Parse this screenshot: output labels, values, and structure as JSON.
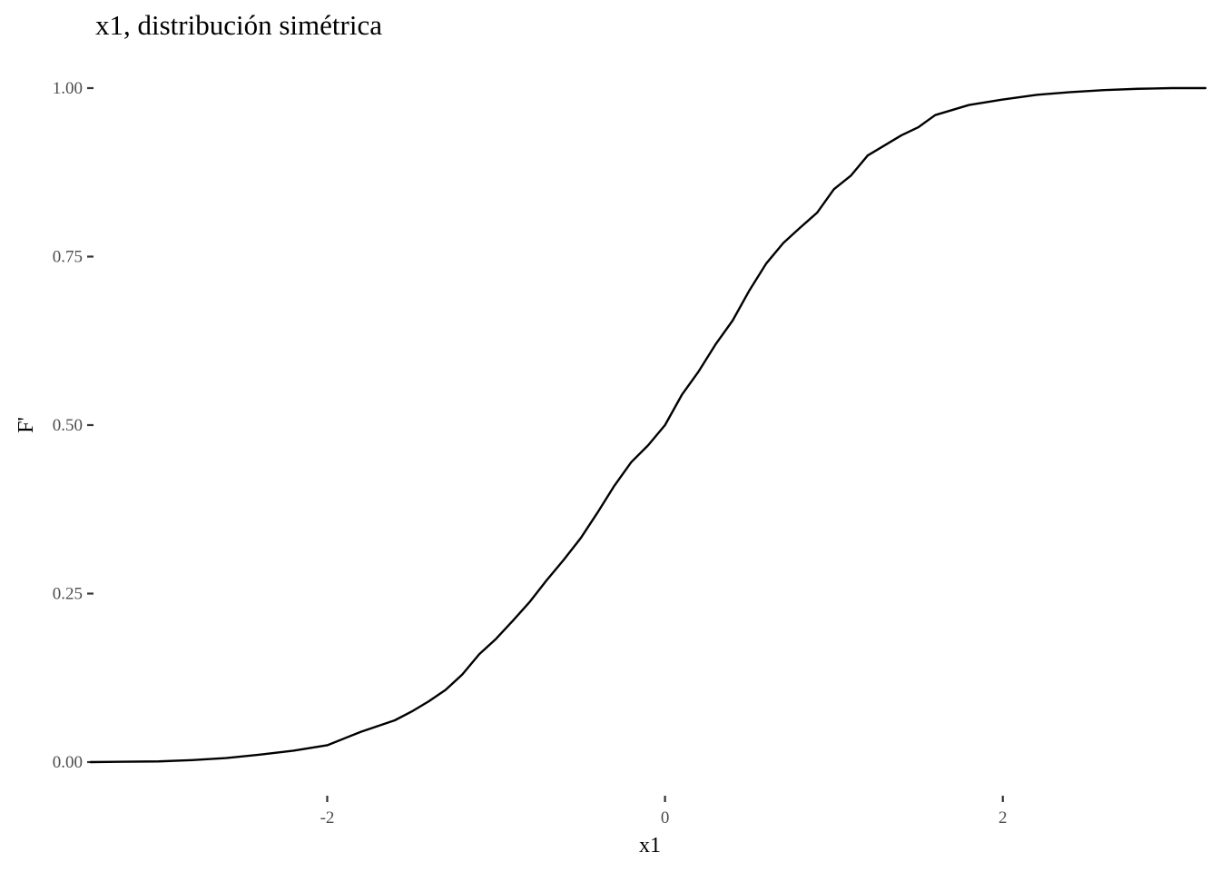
{
  "chart_data": {
    "type": "line",
    "title": "x1, distribución simétrica",
    "xlabel": "x1",
    "ylabel": "F'",
    "xlim": [
      -3.4,
      3.2
    ],
    "ylim": [
      0,
      1
    ],
    "grid": false,
    "x_ticks": [
      {
        "value": -2,
        "label": "-2"
      },
      {
        "value": 0,
        "label": "0"
      },
      {
        "value": 2,
        "label": "2"
      }
    ],
    "y_ticks": [
      {
        "value": 0,
        "label": "0.00"
      },
      {
        "value": 0.25,
        "label": "0.25"
      },
      {
        "value": 0.5,
        "label": "0.50"
      },
      {
        "value": 0.75,
        "label": "0.75"
      },
      {
        "value": 1,
        "label": "1.00"
      }
    ],
    "series": [
      {
        "color": "#000000",
        "x": [
          -3.4,
          -3.0,
          -2.8,
          -2.6,
          -2.4,
          -2.2,
          -2.0,
          -1.8,
          -1.6,
          -1.5,
          -1.4,
          -1.3,
          -1.2,
          -1.1,
          -1.0,
          -0.9,
          -0.8,
          -0.7,
          -0.6,
          -0.5,
          -0.4,
          -0.3,
          -0.2,
          -0.1,
          0.0,
          0.1,
          0.2,
          0.3,
          0.4,
          0.5,
          0.6,
          0.7,
          0.8,
          0.9,
          1.0,
          1.1,
          1.2,
          1.3,
          1.4,
          1.5,
          1.6,
          1.8,
          2.0,
          2.2,
          2.4,
          2.6,
          2.8,
          3.0,
          3.2
        ],
        "y": [
          0.0,
          0.001,
          0.003,
          0.006,
          0.011,
          0.017,
          0.025,
          0.045,
          0.062,
          0.075,
          0.09,
          0.107,
          0.13,
          0.16,
          0.183,
          0.21,
          0.238,
          0.27,
          0.3,
          0.332,
          0.37,
          0.41,
          0.445,
          0.47,
          0.5,
          0.545,
          0.58,
          0.62,
          0.655,
          0.7,
          0.74,
          0.77,
          0.793,
          0.815,
          0.85,
          0.87,
          0.9,
          0.915,
          0.93,
          0.942,
          0.96,
          0.975,
          0.983,
          0.99,
          0.994,
          0.997,
          0.999,
          1.0,
          1.0
        ]
      }
    ]
  }
}
